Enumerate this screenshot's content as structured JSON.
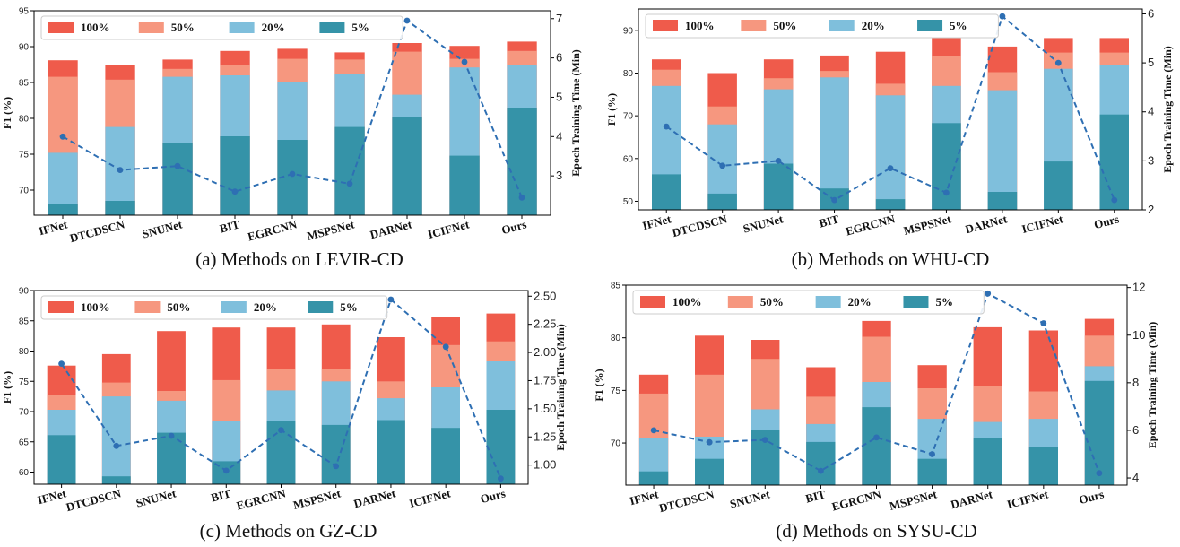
{
  "colors": {
    "p100": "#ef5b4b",
    "p50": "#f6977f",
    "p20": "#7fbfdc",
    "p5": "#3593a8",
    "line": "#2e6fb3"
  },
  "chart_data": [
    {
      "type": "bar",
      "title": "(a) Methods on LEVIR-CD",
      "ylabel": "F1 (%)",
      "y2label": "Epoch Training Time (Min)",
      "ylim": [
        66.5,
        95
      ],
      "yticks": [
        70,
        75,
        80,
        85,
        90,
        95
      ],
      "y2lim": [
        2,
        7.2
      ],
      "y2ticks": [
        3,
        4,
        5,
        6,
        7
      ],
      "categories": [
        "IFNet",
        "DTCDSCN",
        "SNUNet",
        "BIT",
        "EGRCNN",
        "MSPSNet",
        "DARNet",
        "ICIFNet",
        "Ours"
      ],
      "series": [
        {
          "name": "5%",
          "values": [
            68.0,
            68.5,
            76.6,
            77.5,
            77.0,
            78.8,
            80.2,
            74.8,
            81.5
          ]
        },
        {
          "name": "20%",
          "values": [
            75.2,
            78.8,
            85.8,
            86.0,
            85.0,
            86.2,
            83.3,
            87.1,
            87.4
          ]
        },
        {
          "name": "50%",
          "values": [
            85.8,
            85.4,
            86.9,
            87.4,
            88.3,
            88.2,
            89.3,
            88.3,
            89.4
          ]
        },
        {
          "name": "100%",
          "values": [
            88.1,
            87.4,
            88.2,
            89.4,
            89.7,
            89.2,
            90.5,
            90.1,
            90.7
          ]
        }
      ],
      "time_values": [
        4.0,
        3.15,
        3.25,
        2.6,
        3.05,
        2.8,
        6.95,
        5.9,
        2.45
      ],
      "legend_position": "top"
    },
    {
      "type": "bar",
      "title": "(b) Methods on WHU-CD",
      "ylabel": "F1 (%)",
      "y2label": "Epoch Training Time (Min)",
      "ylim": [
        48,
        95
      ],
      "yticks": [
        50,
        60,
        70,
        80,
        90
      ],
      "y2lim": [
        2,
        6.1
      ],
      "y2ticks": [
        2,
        3,
        4,
        5,
        6
      ],
      "categories": [
        "IFNet",
        "DTCDSCN",
        "SNUNet",
        "BIT",
        "EGRCNN",
        "MSPSNet",
        "DARNet",
        "ICIFNet",
        "Ours"
      ],
      "series": [
        {
          "name": "5%",
          "values": [
            56.3,
            51.8,
            58.8,
            53.0,
            50.5,
            68.3,
            52.2,
            59.3,
            70.3
          ]
        },
        {
          "name": "20%",
          "values": [
            77.0,
            68.0,
            76.2,
            79.0,
            74.8,
            77.0,
            76.0,
            81.0,
            81.8
          ]
        },
        {
          "name": "50%",
          "values": [
            80.8,
            72.2,
            78.8,
            80.5,
            77.5,
            84.0,
            80.2,
            84.8,
            84.8
          ]
        },
        {
          "name": "100%",
          "values": [
            83.2,
            80.0,
            83.2,
            84.1,
            85.0,
            88.4,
            86.2,
            88.2,
            88.2
          ]
        }
      ],
      "time_values": [
        3.7,
        2.9,
        3.0,
        2.2,
        2.85,
        2.35,
        5.95,
        5.0,
        2.2
      ],
      "legend_position": "top"
    },
    {
      "type": "bar",
      "title": "(c) Methods on GZ-CD",
      "ylabel": "F1 (%)",
      "y2label": "Epoch Training Time (Min)",
      "ylim": [
        58,
        90
      ],
      "yticks": [
        60,
        65,
        70,
        75,
        80,
        85,
        90
      ],
      "y2lim": [
        0.83,
        2.55
      ],
      "y2ticks": [
        1.0,
        1.25,
        1.5,
        1.75,
        2.0,
        2.25,
        2.5
      ],
      "categories": [
        "IFNet",
        "DTCDSCN",
        "SNUNet",
        "BIT",
        "EGRCNN",
        "MSPSNet",
        "DARNet",
        "ICIFNet",
        "Ours"
      ],
      "series": [
        {
          "name": "5%",
          "values": [
            66.1,
            59.3,
            66.5,
            61.8,
            68.5,
            67.8,
            68.6,
            67.3,
            70.3
          ]
        },
        {
          "name": "20%",
          "values": [
            70.3,
            72.5,
            71.8,
            68.5,
            73.5,
            75.0,
            72.2,
            74.0,
            78.3
          ]
        },
        {
          "name": "50%",
          "values": [
            72.8,
            74.8,
            73.4,
            75.2,
            77.1,
            77.0,
            75.0,
            81.0,
            81.6
          ]
        },
        {
          "name": "100%",
          "values": [
            77.6,
            79.5,
            83.3,
            83.9,
            83.9,
            84.4,
            82.3,
            85.6,
            86.2
          ]
        }
      ],
      "time_values": [
        1.9,
        1.17,
        1.26,
        0.95,
        1.31,
        0.99,
        2.47,
        2.05,
        0.88
      ],
      "legend_position": "top"
    },
    {
      "type": "bar",
      "title": "(d) Methods on SYSU-CD",
      "ylabel": "F1 (%)",
      "y2label": "Epoch Training Time (Min)",
      "ylim": [
        66,
        85
      ],
      "yticks": [
        70,
        75,
        80,
        85
      ],
      "y2lim": [
        3.7,
        12.1
      ],
      "y2ticks": [
        4,
        6,
        8,
        10,
        12
      ],
      "categories": [
        "IFNet",
        "DTCDSCN",
        "SNUNet",
        "BIT",
        "EGRCNN",
        "MSPSNet",
        "DARNet",
        "ICIFNet",
        "Ours"
      ],
      "series": [
        {
          "name": "5%",
          "values": [
            67.3,
            68.5,
            71.2,
            70.1,
            73.4,
            68.5,
            70.5,
            69.6,
            75.9
          ]
        },
        {
          "name": "20%",
          "values": [
            70.5,
            70.6,
            73.2,
            71.8,
            75.8,
            72.3,
            72.0,
            72.3,
            77.3
          ]
        },
        {
          "name": "50%",
          "values": [
            74.7,
            76.5,
            78.0,
            74.4,
            80.1,
            75.2,
            75.4,
            74.9,
            80.2
          ]
        },
        {
          "name": "100%",
          "values": [
            76.5,
            80.2,
            79.8,
            77.2,
            81.6,
            77.4,
            81.0,
            80.7,
            81.8
          ]
        }
      ],
      "time_values": [
        6.0,
        5.5,
        5.6,
        4.3,
        5.7,
        5.0,
        11.75,
        10.5,
        4.2
      ],
      "legend_position": "top"
    }
  ]
}
